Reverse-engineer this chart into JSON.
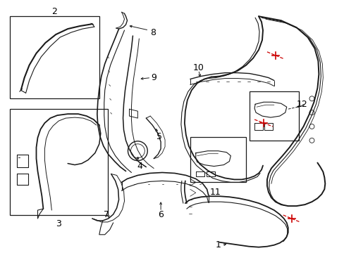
{
  "background_color": "#ffffff",
  "line_color": "#1a1a1a",
  "red_color": "#cc0000",
  "label_color": "#000000",
  "fig_width": 4.89,
  "fig_height": 3.6,
  "dpi": 100
}
